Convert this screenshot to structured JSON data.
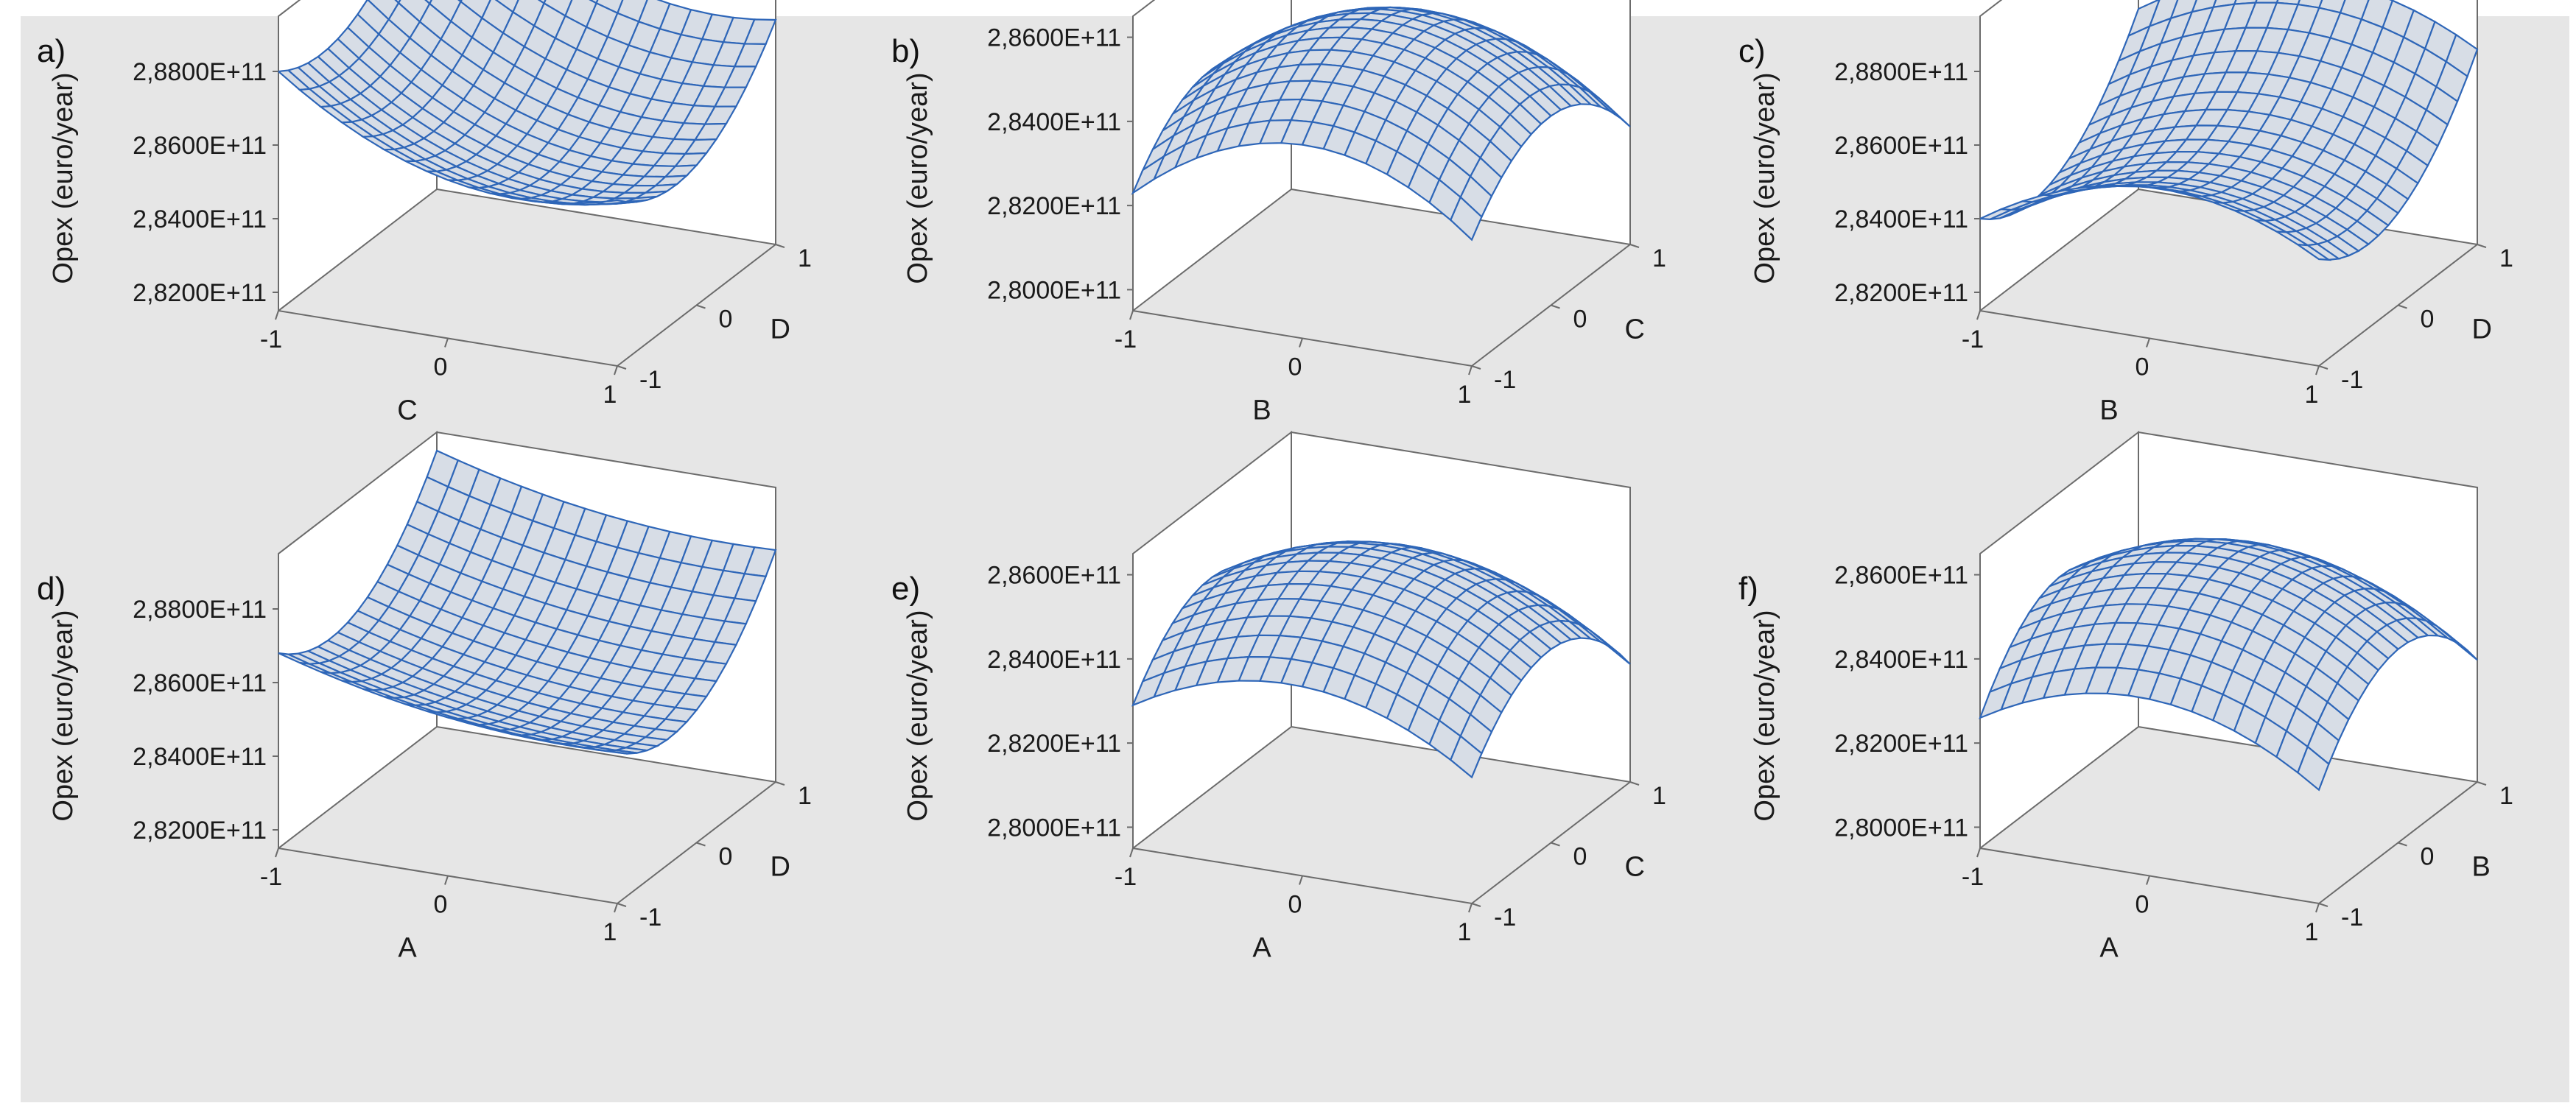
{
  "chart_data": [
    {
      "type": "surface",
      "panel_label": "a)",
      "zlabel": "Opex (euro/year)",
      "xlabel": "C",
      "ylabel": "D",
      "x_ticks": [
        "-1",
        "0",
        "1"
      ],
      "y_ticks": [
        "-1",
        "0",
        "1"
      ],
      "z_ticks": [
        "2,8200E+11",
        "2,8400E+11",
        "2,8600E+11",
        "2,8800E+11"
      ],
      "xlim": [
        -1,
        1
      ],
      "ylim": [
        -1,
        1
      ],
      "zlim": [
        281500000000.0,
        289500000000.0
      ],
      "z_surface": {
        "c0": 285400000000.0,
        "cx": -1300000000.0,
        "cy": 1100000000.0,
        "qx": 1200000000.0,
        "qy": 1500000000.0,
        "qxy": -300000000.0
      },
      "grid": true
    },
    {
      "type": "surface",
      "panel_label": "b)",
      "zlabel": "Opex (euro/year)",
      "xlabel": "B",
      "ylabel": "C",
      "x_ticks": [
        "-1",
        "0",
        "1"
      ],
      "y_ticks": [
        "-1",
        "0",
        "1"
      ],
      "z_ticks": [
        "2,8000E+11",
        "2,8200E+11",
        "2,8400E+11",
        "2,8600E+11"
      ],
      "xlim": [
        -1,
        1
      ],
      "ylim": [
        -1,
        1
      ],
      "zlim": [
        279500000000.0,
        286500000000.0
      ],
      "z_surface": {
        "c0": 285600000000.0,
        "cx": 100000000.0,
        "cy": -100000000.0,
        "qx": -1700000000.0,
        "qy": -1600000000.0,
        "qxy": 0.0
      },
      "grid": true
    },
    {
      "type": "surface",
      "panel_label": "c)",
      "zlabel": "Opex (euro/year)",
      "xlabel": "B",
      "ylabel": "D",
      "x_ticks": [
        "-1",
        "0",
        "1"
      ],
      "y_ticks": [
        "-1",
        "0",
        "1"
      ],
      "z_ticks": [
        "2,8200E+11",
        "2,8400E+11",
        "2,8600E+11",
        "2,8800E+11"
      ],
      "xlim": [
        -1,
        1
      ],
      "ylim": [
        -1,
        1
      ],
      "zlim": [
        281500000000.0,
        289500000000.0
      ],
      "z_surface": {
        "c0": 285200000000.0,
        "cx": 200000000.0,
        "cy": 1200000000.0,
        "qx": -1400000000.0,
        "qy": 1600000000.0,
        "qxy": 0.0
      },
      "grid": true
    },
    {
      "type": "surface",
      "panel_label": "d)",
      "zlabel": "Opex (euro/year)",
      "xlabel": "A",
      "ylabel": "D",
      "x_ticks": [
        "-1",
        "0",
        "1"
      ],
      "y_ticks": [
        "-1",
        "0",
        "1"
      ],
      "z_ticks": [
        "2,8200E+11",
        "2,8400E+11",
        "2,8600E+11",
        "2,8800E+11"
      ],
      "xlim": [
        -1,
        1
      ],
      "ylim": [
        -1,
        1
      ],
      "zlim": [
        281500000000.0,
        289500000000.0
      ],
      "z_surface": {
        "c0": 285300000000.0,
        "cx": -600000000.0,
        "cy": 1100000000.0,
        "qx": 400000000.0,
        "qy": 1600000000.0,
        "qxy": 0.0
      },
      "grid": true
    },
    {
      "type": "surface",
      "panel_label": "e)",
      "zlabel": "Opex (euro/year)",
      "xlabel": "A",
      "ylabel": "C",
      "x_ticks": [
        "-1",
        "0",
        "1"
      ],
      "y_ticks": [
        "-1",
        "0",
        "1"
      ],
      "z_ticks": [
        "2,8000E+11",
        "2,8200E+11",
        "2,8400E+11",
        "2,8600E+11"
      ],
      "xlim": [
        -1,
        1
      ],
      "ylim": [
        -1,
        1
      ],
      "zlim": [
        279500000000.0,
        286500000000.0
      ],
      "z_surface": {
        "c0": 285600000000.0,
        "cx": -200000000.0,
        "cy": -100000000.0,
        "qx": -1300000000.0,
        "qy": -1700000000.0,
        "qxy": 0.0
      },
      "grid": true
    },
    {
      "type": "surface",
      "panel_label": "f)",
      "zlabel": "Opex (euro/year)",
      "xlabel": "A",
      "ylabel": "B",
      "x_ticks": [
        "-1",
        "0",
        "1"
      ],
      "y_ticks": [
        "-1",
        "0",
        "1"
      ],
      "z_ticks": [
        "2,8000E+11",
        "2,8200E+11",
        "2,8400E+11",
        "2,8600E+11"
      ],
      "xlim": [
        -1,
        1
      ],
      "ylim": [
        -1,
        1
      ],
      "zlim": [
        279500000000.0,
        286500000000.0
      ],
      "z_surface": {
        "c0": 285600000000.0,
        "cx": -200000000.0,
        "cy": 100000000.0,
        "qx": -1300000000.0,
        "qy": -1800000000.0,
        "qxy": 0.0
      },
      "grid": true
    }
  ],
  "colors": {
    "background": "#e6e6e6",
    "surface_fill": "#d7dde6",
    "mesh_line": "#2e66b8",
    "box_line": "#6b6b6b"
  }
}
